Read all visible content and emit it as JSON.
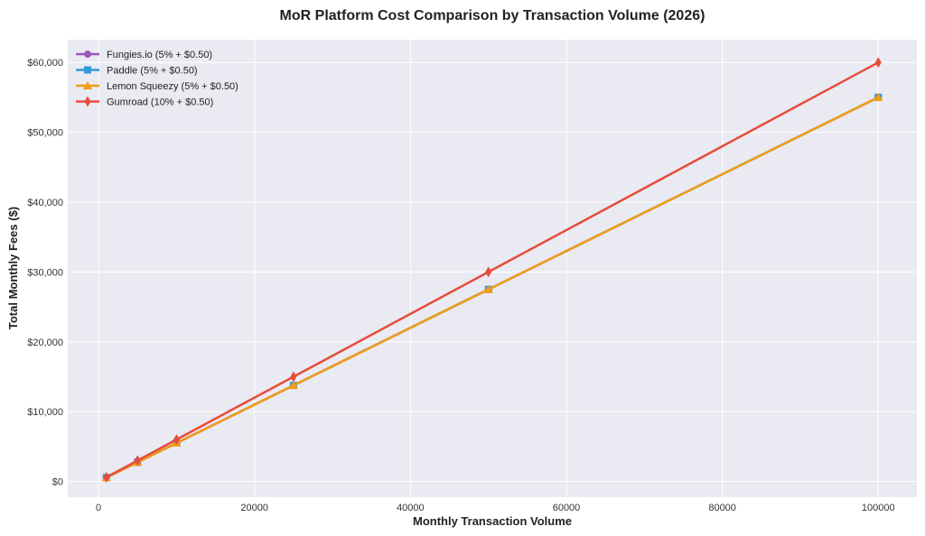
{
  "chart_data": {
    "type": "line",
    "title": "MoR Platform Cost Comparison by Transaction Volume (2026)",
    "xlabel": "Monthly Transaction Volume",
    "ylabel": "Total Monthly Fees ($)",
    "x": [
      1000,
      5000,
      10000,
      25000,
      50000,
      100000
    ],
    "xlim": [
      -3950,
      104950
    ],
    "ylim": [
      -2255,
      63255
    ],
    "xticks": [
      0,
      20000,
      40000,
      60000,
      80000,
      100000
    ],
    "xtick_labels": [
      "0",
      "20000",
      "40000",
      "60000",
      "80000",
      "100000"
    ],
    "yticks": [
      0,
      10000,
      20000,
      30000,
      40000,
      50000,
      60000
    ],
    "ytick_labels": [
      "$0",
      "$10,000",
      "$20,000",
      "$30,000",
      "$40,000",
      "$50,000",
      "$60,000"
    ],
    "grid": true,
    "legend_position": "top-left",
    "background": "#eaeaf2",
    "series": [
      {
        "name": "Fungies.io (5% + $0.50)",
        "color": "#9b59b6",
        "marker": "circle",
        "values": [
          550,
          2750,
          5500,
          13750,
          27500,
          55000
        ]
      },
      {
        "name": "Paddle (5% + $0.50)",
        "color": "#3498db",
        "marker": "square",
        "values": [
          550,
          2750,
          5500,
          13750,
          27500,
          55000
        ]
      },
      {
        "name": "Lemon Squeezy (5% + $0.50)",
        "color": "#f39c12",
        "marker": "triangle",
        "values": [
          550,
          2750,
          5500,
          13750,
          27500,
          55000
        ]
      },
      {
        "name": "Gumroad (10% + $0.50)",
        "color": "#e74c3c",
        "marker": "diamond",
        "values": [
          600,
          3000,
          6000,
          15000,
          30000,
          60000
        ]
      }
    ]
  }
}
